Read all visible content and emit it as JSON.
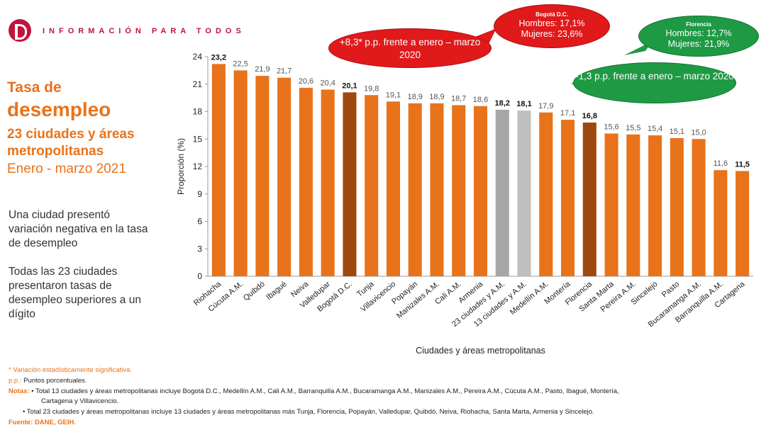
{
  "header": {
    "tagline": "INFORMACIÓN PARA TODOS"
  },
  "sidebar": {
    "title_line1": "Tasa de",
    "title_line2": "desempleo",
    "title_line3": "23 ciudades y áreas metropolitanas",
    "title_line4": "Enero - marzo 2021",
    "note1": "Una ciudad presentó variación negativa en la tasa de desempleo",
    "note2": "Todas las 23 ciudades presentaron tasas de desempleo superiores a un dígito"
  },
  "bubbles": {
    "bogota_change": "+8,3* p.p. frente a enero – marzo 2020",
    "bogota_title": "Bogotá D.C.",
    "bogota_men": "Hombres: 17,1%",
    "bogota_women": "Mujeres: 23,6%",
    "florencia_title": "Florencia",
    "florencia_men": "Hombres: 12,7%",
    "florencia_women": "Mujeres: 21,9%",
    "florencia_change": "-1,3 p.p. frente a enero – marzo 2020"
  },
  "colors": {
    "bar": "#e8731a",
    "highlight": "#a0490f",
    "aggregate": "#a6a6a6",
    "aggregate13": "#bfbfbf"
  },
  "chart_data": {
    "type": "bar",
    "title": "Tasa de desempleo 23 ciudades y áreas metropolitanas",
    "xlabel": "Ciudades y áreas metropolitanas",
    "ylabel": "Proporción (%)",
    "ylim": [
      0,
      24
    ],
    "yticks": [
      0,
      3,
      6,
      9,
      12,
      15,
      18,
      21,
      24
    ],
    "categories": [
      "Riohacha",
      "Cúcuta A.M.",
      "Quibdó",
      "Ibagué",
      "Neiva",
      "Valledupar",
      "Bogotá D.C.",
      "Tunja",
      "Villavicencio",
      "Popayán",
      "Manizales A.M.",
      "Cali A.M.",
      "Armenia",
      "23 ciudades y A.M.",
      "13 ciudades y A.M.",
      "Medellín A.M.",
      "Montería",
      "Florencia",
      "Santa Marta",
      "Pereira A.M.",
      "Sincelejo",
      "Pasto",
      "Bucaramanga A.M.",
      "Barranquilla A.M.",
      "Cartagena"
    ],
    "values": [
      23.2,
      22.5,
      21.9,
      21.7,
      20.6,
      20.4,
      20.1,
      19.8,
      19.1,
      18.9,
      18.9,
      18.7,
      18.6,
      18.2,
      18.1,
      17.9,
      17.1,
      16.8,
      15.6,
      15.5,
      15.4,
      15.1,
      15.0,
      11.6,
      11.5
    ],
    "labels": [
      "23,2",
      "22,5",
      "21,9",
      "21,7",
      "20,6",
      "20,4",
      "20,1",
      "19,8",
      "19,1",
      "18,9",
      "18,9",
      "18,7",
      "18,6",
      "18,2",
      "18,1",
      "17,9",
      "17,1",
      "16,8",
      "15,6",
      "15,5",
      "15,4",
      "15,1",
      "15,0",
      "11,6",
      "11,5"
    ],
    "bold_labels": [
      0,
      6,
      13,
      14,
      17,
      24
    ],
    "highlight": [
      6,
      17
    ],
    "aggregate": [
      13,
      14
    ]
  },
  "footer": {
    "line1": "* Variación estadísticamente significativa.",
    "line2_key": "p.p.:",
    "line2_text": " Puntos porcentuales.",
    "line3_key": "Notas:",
    "line3_text": " • Total 13 ciudades y áreas metropolitanas incluye Bogotá D.C., Medellín A.M., Cali A.M., Barranquilla A.M., Bucaramanga A.M., Manizales A.M., Pereira A.M., Cúcuta A.M., Pasto, Ibagué, Montería,",
    "line3b": "Cartagena y Villavicencio.",
    "line4": "• Total 23 ciudades y áreas metropolitanas incluye 13 ciudades y áreas metropolitanas más Tunja, Florencia, Popayán, Valledupar, Quibdó, Neiva, Riohacha, Santa Marta, Armenia y Sincelejo.",
    "line5": "Fuente: DANE, GEIH."
  }
}
